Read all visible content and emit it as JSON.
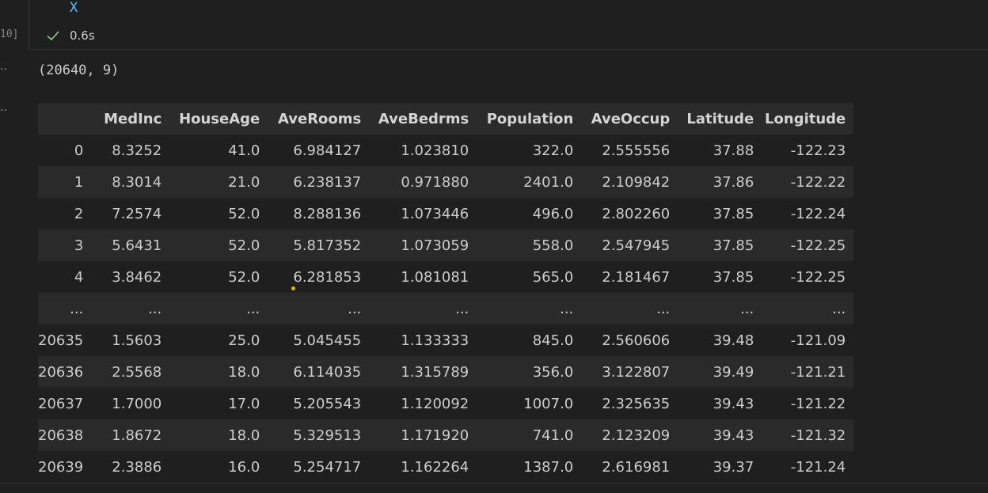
{
  "code_cell": {
    "trailing_code": "X",
    "execution_count": "10]",
    "status_time": "0.6s",
    "status_icon": "check-icon",
    "status_color": "#89d185"
  },
  "outputs": {
    "ellipsis_1": "··",
    "ellipsis_2": "··",
    "shape_text": "(20640, 9)"
  },
  "dataframe": {
    "index_header": "",
    "columns": [
      "MedInc",
      "HouseAge",
      "AveRooms",
      "AveBedrms",
      "Population",
      "AveOccup",
      "Latitude",
      "Longitude"
    ],
    "rows": [
      {
        "index": "0",
        "values": [
          "8.3252",
          "41.0",
          "6.984127",
          "1.023810",
          "322.0",
          "2.555556",
          "37.88",
          "-122.23"
        ]
      },
      {
        "index": "1",
        "values": [
          "8.3014",
          "21.0",
          "6.238137",
          "0.971880",
          "2401.0",
          "2.109842",
          "37.86",
          "-122.22"
        ]
      },
      {
        "index": "2",
        "values": [
          "7.2574",
          "52.0",
          "8.288136",
          "1.073446",
          "496.0",
          "2.802260",
          "37.85",
          "-122.24"
        ]
      },
      {
        "index": "3",
        "values": [
          "5.6431",
          "52.0",
          "5.817352",
          "1.073059",
          "558.0",
          "2.547945",
          "37.85",
          "-122.25"
        ]
      },
      {
        "index": "4",
        "values": [
          "3.8462",
          "52.0",
          "6.281853",
          "1.081081",
          "565.0",
          "2.181467",
          "37.85",
          "-122.25"
        ]
      },
      {
        "index": "...",
        "values": [
          "...",
          "...",
          "...",
          "...",
          "...",
          "...",
          "...",
          "..."
        ]
      },
      {
        "index": "20635",
        "values": [
          "1.5603",
          "25.0",
          "5.045455",
          "1.133333",
          "845.0",
          "2.560606",
          "39.48",
          "-121.09"
        ]
      },
      {
        "index": "20636",
        "values": [
          "2.5568",
          "18.0",
          "6.114035",
          "1.315789",
          "356.0",
          "3.122807",
          "39.49",
          "-121.21"
        ]
      },
      {
        "index": "20637",
        "values": [
          "1.7000",
          "17.0",
          "5.205543",
          "1.120092",
          "1007.0",
          "2.325635",
          "39.43",
          "-121.22"
        ]
      },
      {
        "index": "20638",
        "values": [
          "1.8672",
          "18.0",
          "5.329513",
          "1.171920",
          "741.0",
          "2.123209",
          "39.43",
          "-121.32"
        ]
      },
      {
        "index": "20639",
        "values": [
          "2.3886",
          "16.0",
          "5.254717",
          "1.162264",
          "1387.0",
          "2.616981",
          "39.37",
          "-121.24"
        ]
      }
    ]
  },
  "colors": {
    "background": "#1f1f1f",
    "header_row": "#2b2b2b",
    "stripe_row": "#2a2a2a",
    "code_identifier": "#4fc1ff",
    "success": "#89d185"
  }
}
